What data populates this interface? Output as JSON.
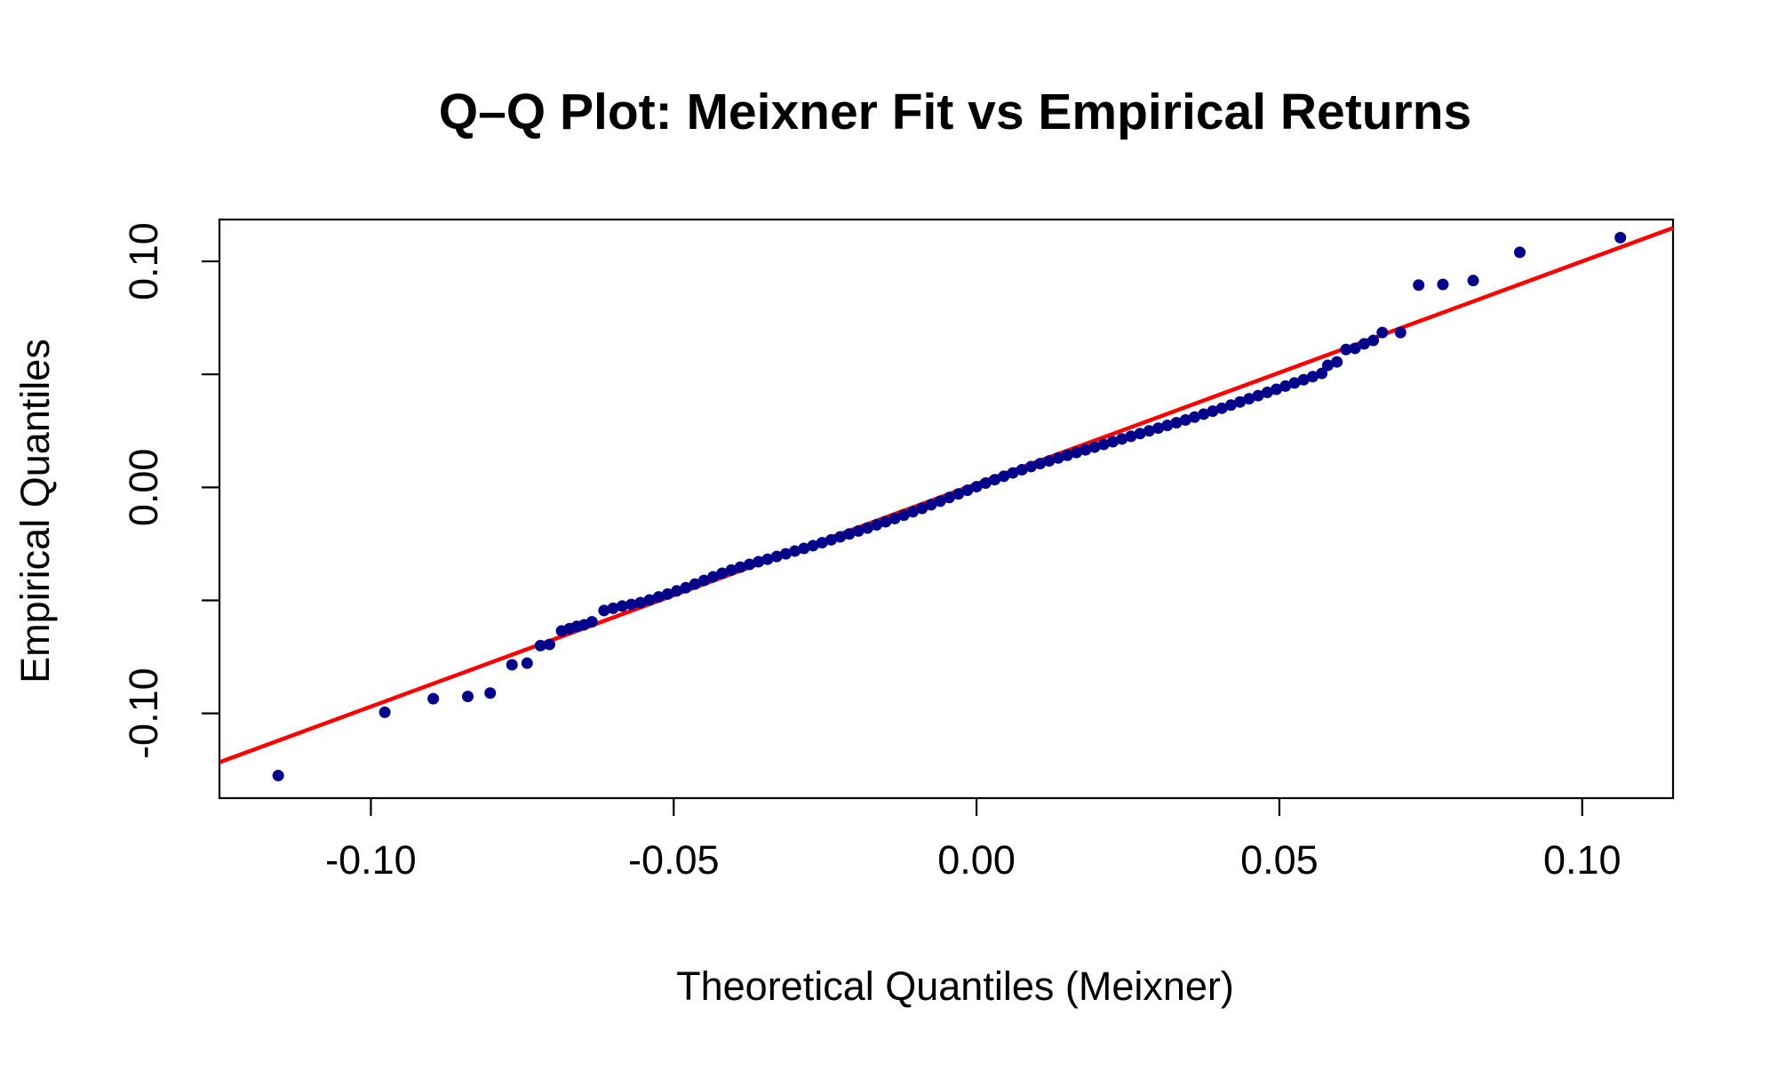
{
  "chart_data": {
    "type": "scatter",
    "title": "Q–Q Plot: Meixner Fit vs Empirical Returns",
    "xlabel": "Theoretical Quantiles (Meixner)",
    "ylabel": "Empirical Quantiles",
    "xlim": [
      -0.125,
      0.115
    ],
    "ylim": [
      -0.1375,
      0.1185
    ],
    "x_ticks": [
      -0.1,
      -0.05,
      0.0,
      0.05,
      0.1
    ],
    "x_tick_labels": [
      "-0.10",
      "-0.05",
      "0.00",
      "0.05",
      "0.10"
    ],
    "y_ticks": [
      -0.1,
      -0.05,
      0.0,
      0.05,
      0.1
    ],
    "y_tick_labels": [
      "-0.10",
      "",
      "0.00",
      "",
      "0.10"
    ],
    "grid": false,
    "legend": "none",
    "colors": {
      "points": "#00008B",
      "reference_line": "#FF0000",
      "axes": "#000000"
    },
    "reference_line": {
      "intercept": 0.0015,
      "slope": 0.985
    },
    "series": [
      {
        "x": [
          -0.1153,
          -0.0977,
          -0.0897,
          -0.084,
          -0.0803,
          -0.0767,
          -0.0742,
          -0.072,
          -0.0705,
          -0.0685,
          -0.0672,
          -0.066,
          -0.0648,
          -0.0635,
          -0.0615,
          -0.06,
          -0.0585,
          -0.057,
          -0.0555,
          -0.054,
          -0.0525,
          -0.051,
          -0.0495,
          -0.048,
          -0.0465,
          -0.045,
          -0.0435,
          -0.042,
          -0.0405,
          -0.039,
          -0.0375,
          -0.036,
          -0.0345,
          -0.033,
          -0.0315,
          -0.03,
          -0.0285,
          -0.027,
          -0.0255,
          -0.024,
          -0.0225,
          -0.021,
          -0.0195,
          -0.018,
          -0.0165,
          -0.015,
          -0.0135,
          -0.012,
          -0.0105,
          -0.009,
          -0.0075,
          -0.006,
          -0.0045,
          -0.003,
          -0.0015,
          0.0,
          0.0015,
          0.003,
          0.0045,
          0.006,
          0.0075,
          0.009,
          0.0105,
          0.012,
          0.0135,
          0.015,
          0.0165,
          0.018,
          0.0195,
          0.021,
          0.0225,
          0.024,
          0.0255,
          0.027,
          0.0285,
          0.03,
          0.0315,
          0.033,
          0.0345,
          0.036,
          0.0375,
          0.039,
          0.0405,
          0.042,
          0.0435,
          0.045,
          0.0465,
          0.048,
          0.0495,
          0.051,
          0.0525,
          0.054,
          0.0555,
          0.057,
          0.058,
          0.0595,
          0.061,
          0.0625,
          0.064,
          0.0655,
          0.067,
          0.07,
          0.073,
          0.077,
          0.082,
          0.0897,
          0.1063
        ],
        "y": [
          -0.1275,
          -0.0995,
          -0.0935,
          -0.0925,
          -0.091,
          -0.0785,
          -0.0778,
          -0.07,
          -0.0695,
          -0.0635,
          -0.0625,
          -0.0615,
          -0.0608,
          -0.0595,
          -0.0545,
          -0.0535,
          -0.0525,
          -0.0518,
          -0.051,
          -0.0498,
          -0.0485,
          -0.0472,
          -0.0458,
          -0.0444,
          -0.0428,
          -0.0412,
          -0.0396,
          -0.038,
          -0.0366,
          -0.0353,
          -0.0341,
          -0.0329,
          -0.0318,
          -0.0306,
          -0.0294,
          -0.0282,
          -0.027,
          -0.0258,
          -0.0245,
          -0.0232,
          -0.0219,
          -0.0206,
          -0.0193,
          -0.018,
          -0.0166,
          -0.0152,
          -0.0138,
          -0.0123,
          -0.0108,
          -0.0093,
          -0.0077,
          -0.0061,
          -0.0045,
          -0.0029,
          -0.0013,
          0.0003,
          0.0019,
          0.0034,
          0.0049,
          0.0064,
          0.0078,
          0.0092,
          0.0105,
          0.0117,
          0.013,
          0.0142,
          0.0154,
          0.0166,
          0.0178,
          0.019,
          0.0202,
          0.0214,
          0.0226,
          0.0238,
          0.025,
          0.0262,
          0.0274,
          0.0286,
          0.0298,
          0.0311,
          0.0324,
          0.0337,
          0.035,
          0.0364,
          0.0378,
          0.0392,
          0.0406,
          0.042,
          0.0434,
          0.0448,
          0.0462,
          0.0476,
          0.049,
          0.0504,
          0.054,
          0.0555,
          0.061,
          0.0615,
          0.0635,
          0.065,
          0.0685,
          0.0685,
          0.0895,
          0.0898,
          0.0915,
          0.104,
          0.1105
        ]
      }
    ]
  }
}
